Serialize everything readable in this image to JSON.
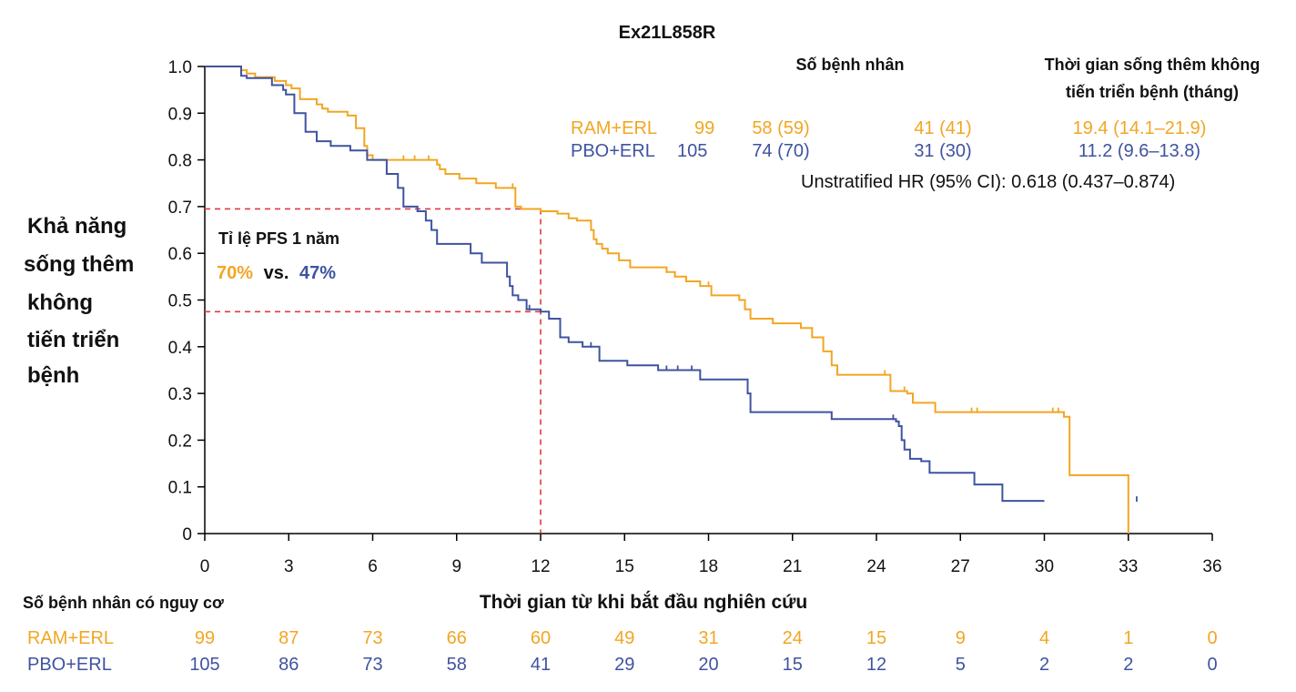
{
  "title": "Ex21L858R",
  "colors": {
    "ram": "#F2A623",
    "pbo": "#3F53A0",
    "ref": "#E0393E",
    "text": "#111111"
  },
  "ylabel_lines": [
    "Khả năng",
    "sống thêm",
    "không",
    "tiến triển",
    "bệnh"
  ],
  "xlabel": "Thời gian từ khi bắt đầu nghiên cứu",
  "legend_table": {
    "header_patients": "Số bệnh nhân",
    "header_pfs_line1": "Thời gian sống thêm không",
    "header_pfs_line2": "tiến triển bệnh (tháng)",
    "rows": [
      {
        "key": "ram",
        "name": "RAM+ERL",
        "n": "99",
        "c1": "58 (59)",
        "c2": "41 (41)",
        "median": "19.4 (14.1–21.9)"
      },
      {
        "key": "pbo",
        "name": "PBO+ERL",
        "n": "105",
        "c1": "74 (70)",
        "c2": "31 (30)",
        "median": "11.2 (9.6–13.8)"
      }
    ],
    "hr_text": "Unstratified HR (95% CI): 0.618 (0.437–0.874)"
  },
  "annotation": {
    "label": "Tỉ lệ PFS 1 năm",
    "ram_value": "70%",
    "vs": "vs.",
    "pbo_value": "47%"
  },
  "risk_table": {
    "title": "Số bệnh nhân có nguy cơ",
    "rows": [
      {
        "key": "ram",
        "name": "RAM+ERL",
        "values": [
          "99",
          "87",
          "73",
          "66",
          "60",
          "49",
          "31",
          "24",
          "15",
          "9",
          "4",
          "1",
          "0"
        ]
      },
      {
        "key": "pbo",
        "name": "PBO+ERL",
        "values": [
          "105",
          "86",
          "73",
          "58",
          "41",
          "29",
          "20",
          "15",
          "12",
          "5",
          "2",
          "2",
          "0"
        ]
      }
    ]
  },
  "chart_data": {
    "type": "line",
    "step": true,
    "xlim": [
      0,
      36
    ],
    "ylim": [
      0,
      1
    ],
    "xticks": [
      0,
      3,
      6,
      9,
      12,
      15,
      18,
      21,
      24,
      27,
      30,
      33,
      36
    ],
    "yticks": [
      "0",
      "0.1",
      "0.2",
      "0.3",
      "0.4",
      "0.5",
      "0.6",
      "0.7",
      "0.8",
      "0.9",
      "1.0"
    ],
    "reference_lines": {
      "x": 12,
      "y_ram": 0.695,
      "y_pbo": 0.475
    },
    "series": [
      {
        "key": "ram",
        "name": "RAM+ERL",
        "x": [
          0,
          1.3,
          1.5,
          1.8,
          2.5,
          2.9,
          3.1,
          3.4,
          4.0,
          4.2,
          4.4,
          5.1,
          5.4,
          5.7,
          5.8,
          6.0,
          8.3,
          8.4,
          8.6,
          9.1,
          9.7,
          10.4,
          11.1,
          11.3,
          12.0,
          12.6,
          13.0,
          13.3,
          13.8,
          13.9,
          14.0,
          14.2,
          14.4,
          14.8,
          15.2,
          16.5,
          16.8,
          17.2,
          17.7,
          18.1,
          19.1,
          19.3,
          19.5,
          20.3,
          21.3,
          21.7,
          22.1,
          22.4,
          22.6,
          24.5,
          25.1,
          25.3,
          26.1,
          30.7,
          30.9,
          32.8,
          33.0
        ],
        "y": [
          1.0,
          0.992,
          0.985,
          0.977,
          0.969,
          0.96,
          0.953,
          0.93,
          0.919,
          0.91,
          0.903,
          0.895,
          0.868,
          0.83,
          0.81,
          0.8,
          0.79,
          0.78,
          0.77,
          0.76,
          0.75,
          0.74,
          0.7,
          0.695,
          0.69,
          0.685,
          0.675,
          0.67,
          0.65,
          0.63,
          0.62,
          0.61,
          0.6,
          0.585,
          0.57,
          0.56,
          0.55,
          0.54,
          0.53,
          0.51,
          0.5,
          0.48,
          0.46,
          0.45,
          0.44,
          0.42,
          0.39,
          0.36,
          0.34,
          0.305,
          0.3,
          0.28,
          0.26,
          0.25,
          0.125,
          0.125,
          0.0
        ],
        "censor_x": [
          7.1,
          7.5,
          8.0,
          11.0,
          16.5,
          16.8,
          17.2,
          18.0,
          24.3,
          25.0,
          27.4,
          27.6,
          30.3,
          30.5
        ]
      },
      {
        "key": "pbo",
        "name": "PBO+ERL",
        "x": [
          0,
          1.3,
          1.5,
          2.4,
          2.8,
          2.9,
          3.2,
          3.6,
          4.0,
          4.5,
          5.2,
          5.8,
          6.5,
          6.9,
          7.1,
          7.6,
          7.9,
          8.1,
          8.3,
          9.5,
          9.9,
          10.8,
          10.9,
          11.0,
          11.2,
          11.5,
          12.0,
          12.3,
          12.7,
          13.0,
          13.5,
          14.1,
          15.1,
          16.2,
          17.7,
          19.4,
          19.5,
          21.0,
          22.4,
          24.7,
          24.8,
          24.9,
          25.0,
          25.2,
          25.6,
          25.9,
          27.5,
          28.5,
          30.0
        ],
        "y": [
          1.0,
          0.98,
          0.975,
          0.96,
          0.95,
          0.94,
          0.9,
          0.86,
          0.84,
          0.83,
          0.82,
          0.8,
          0.77,
          0.74,
          0.7,
          0.69,
          0.67,
          0.65,
          0.62,
          0.6,
          0.58,
          0.55,
          0.53,
          0.51,
          0.5,
          0.48,
          0.475,
          0.46,
          0.42,
          0.41,
          0.4,
          0.37,
          0.36,
          0.35,
          0.33,
          0.3,
          0.26,
          0.26,
          0.245,
          0.24,
          0.23,
          0.2,
          0.18,
          0.16,
          0.155,
          0.13,
          0.105,
          0.07,
          0.07
        ],
        "censor_x": [
          11.6,
          13.8,
          16.5,
          16.9,
          17.4,
          24.6,
          33.3
        ]
      }
    ]
  }
}
